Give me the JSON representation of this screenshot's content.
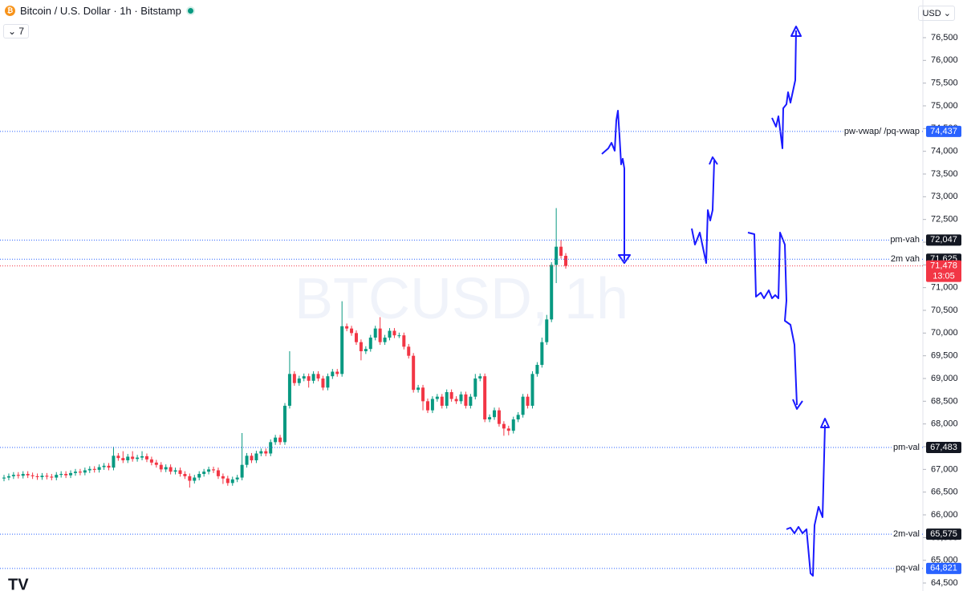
{
  "chart_data": {
    "type": "candlestick",
    "title": "Bitcoin / U.S. Dollar · 1h · Bitstamp",
    "indicators": 7,
    "currency": "USD",
    "watermark": "BTCUSD, 1h",
    "up_color": "#089981",
    "down_color": "#f23645",
    "open": [
      66800,
      66820,
      66850,
      66880,
      66860,
      66900,
      66870,
      66850,
      66830,
      66860,
      66840,
      66820,
      66880,
      66900,
      66870,
      66920,
      66950,
      66930,
      66980,
      67010,
      66990,
      67050,
      67080,
      67040,
      67300,
      67250,
      67200,
      67280,
      67230,
      67260,
      67290,
      67220,
      67150,
      67100,
      67000,
      67050,
      66950,
      66980,
      66900,
      66850,
      66750,
      66820,
      66900,
      66950,
      67000,
      66980,
      66850,
      66800,
      66700,
      66780,
      66820,
      67100,
      67300,
      67200,
      67350,
      67400,
      67350,
      67600,
      67700,
      67600,
      68400,
      69100,
      68900,
      69000,
      69050,
      68950,
      69100,
      69000,
      68800,
      69050,
      69150,
      69100,
      70150,
      70100,
      70000,
      69800,
      69600,
      69650,
      69900,
      70100,
      69800,
      69900,
      70050,
      69950,
      69950,
      69700,
      69500,
      68750,
      68800,
      68500,
      68300,
      68550,
      68600,
      68400,
      68700,
      68550,
      68500,
      68650,
      68400,
      68600,
      69000,
      69050,
      68100,
      68150,
      68300,
      68000,
      67900,
      67850,
      68100,
      68200,
      68600,
      68400,
      69100,
      69300,
      69800,
      70300,
      71500,
      71900,
      71700
    ],
    "high": [
      66880,
      66910,
      66940,
      66940,
      66960,
      66960,
      66930,
      66910,
      66920,
      66920,
      66900,
      66940,
      66960,
      66960,
      66980,
      67010,
      67010,
      67040,
      67070,
      67070,
      67110,
      67140,
      67140,
      67500,
      67360,
      67400,
      67340,
      67400,
      67320,
      67400,
      67350,
      67280,
      67210,
      67160,
      67110,
      67110,
      67040,
      67040,
      66960,
      66910,
      66880,
      66960,
      67010,
      67060,
      67060,
      67040,
      66910,
      66860,
      66840,
      66880,
      67800,
      67360,
      67360,
      67410,
      67460,
      67460,
      67660,
      67760,
      67760,
      68460,
      69600,
      69160,
      69060,
      69110,
      69110,
      69160,
      69160,
      69060,
      69110,
      69210,
      69210,
      70700,
      70210,
      70160,
      70060,
      69860,
      69710,
      69960,
      70160,
      70350,
      69960,
      70110,
      70110,
      70010,
      70010,
      69760,
      69560,
      68860,
      68860,
      68560,
      68610,
      68660,
      68660,
      68760,
      68760,
      68610,
      68710,
      68710,
      68660,
      69100,
      69110,
      69110,
      68210,
      68360,
      68360,
      68060,
      67960,
      68160,
      68260,
      68660,
      68660,
      69160,
      69360,
      69900,
      70400,
      71560,
      72750,
      72050,
      71760
    ],
    "low": [
      66740,
      66760,
      66790,
      66800,
      66800,
      66810,
      66790,
      66770,
      66770,
      66780,
      66760,
      66760,
      66820,
      66810,
      66810,
      66860,
      66870,
      66870,
      66920,
      66930,
      66930,
      66990,
      66980,
      66980,
      67190,
      67140,
      67140,
      67170,
      67170,
      67200,
      67160,
      67090,
      67040,
      66940,
      66940,
      66890,
      66890,
      66840,
      66790,
      66600,
      66690,
      66760,
      66840,
      66890,
      66920,
      66790,
      66680,
      66640,
      66640,
      66720,
      66760,
      67040,
      67140,
      67140,
      67290,
      67290,
      67290,
      67540,
      67540,
      67540,
      68340,
      68840,
      68840,
      68940,
      68800,
      68890,
      68940,
      68740,
      68740,
      68990,
      69040,
      69040,
      70040,
      69940,
      69740,
      69400,
      69540,
      69590,
      69840,
      69740,
      69740,
      69840,
      69890,
      69890,
      69640,
      69440,
      68690,
      68690,
      68300,
      68240,
      68240,
      68490,
      68340,
      68340,
      68490,
      68440,
      68440,
      68340,
      68340,
      68540,
      68940,
      68040,
      68040,
      68090,
      67940,
      67740,
      67750,
      67790,
      68040,
      68140,
      68340,
      68340,
      69040,
      69240,
      69740,
      70240,
      71100,
      71640,
      71418
    ],
    "close": [
      66820,
      66850,
      66880,
      66860,
      66900,
      66870,
      66850,
      66830,
      66860,
      66840,
      66820,
      66880,
      66900,
      66870,
      66920,
      66950,
      66930,
      66980,
      67010,
      66990,
      67050,
      67080,
      67040,
      67300,
      67250,
      67200,
      67280,
      67230,
      67260,
      67290,
      67220,
      67150,
      67100,
      67000,
      67050,
      66950,
      66980,
      66900,
      66850,
      66750,
      66820,
      66900,
      66950,
      67000,
      66980,
      66850,
      66800,
      66700,
      66780,
      66820,
      67100,
      67300,
      67200,
      67350,
      67400,
      67350,
      67600,
      67700,
      67600,
      68400,
      69100,
      68900,
      69000,
      69050,
      68950,
      69100,
      69000,
      68800,
      69050,
      69150,
      69100,
      70150,
      70100,
      70000,
      69800,
      69600,
      69650,
      69900,
      70100,
      69800,
      69900,
      70050,
      69950,
      69950,
      69700,
      69500,
      68750,
      68800,
      68500,
      68300,
      68550,
      68600,
      68400,
      68700,
      68550,
      68500,
      68650,
      68400,
      68600,
      69000,
      69050,
      68100,
      68150,
      68300,
      68000,
      67900,
      67850,
      68100,
      68200,
      68600,
      68400,
      69100,
      69300,
      69800,
      70300,
      71500,
      71900,
      71700,
      71478
    ],
    "ylim": [
      64324,
      77329
    ],
    "yticks": [
      {
        "value": 64500,
        "label": "64,500"
      },
      {
        "value": 65000,
        "label": "65,000"
      },
      {
        "value": 65500,
        "label": "65,500"
      },
      {
        "value": 66000,
        "label": "66,000"
      },
      {
        "value": 66500,
        "label": "66,500"
      },
      {
        "value": 67000,
        "label": "67,000"
      },
      {
        "value": 67500,
        "label": "67,500"
      },
      {
        "value": 68000,
        "label": "68,000"
      },
      {
        "value": 68500,
        "label": "68,500"
      },
      {
        "value": 69000,
        "label": "69,000"
      },
      {
        "value": 69500,
        "label": "69,500"
      },
      {
        "value": 70000,
        "label": "70,000"
      },
      {
        "value": 70500,
        "label": "70,500"
      },
      {
        "value": 71000,
        "label": "71,000"
      },
      {
        "value": 71500,
        "label": "71,500"
      },
      {
        "value": 72000,
        "label": "72,000"
      },
      {
        "value": 72500,
        "label": "72,500"
      },
      {
        "value": 73000,
        "label": "73,000"
      },
      {
        "value": 73500,
        "label": "73,500"
      },
      {
        "value": 74000,
        "label": "74,000"
      },
      {
        "value": 74500,
        "label": "74,500"
      },
      {
        "value": 75000,
        "label": "75,000"
      },
      {
        "value": 75500,
        "label": "75,500"
      },
      {
        "value": 76000,
        "label": "76,000"
      },
      {
        "value": 76500,
        "label": "76,500"
      }
    ],
    "levels": [
      {
        "name": "pw-vwap/ /pq-vwap",
        "value": 74437,
        "value_label": "74,437",
        "color": "#2962ff"
      },
      {
        "name": "pm-vah",
        "value": 72047,
        "value_label": "72,047",
        "color": "#131722"
      },
      {
        "name": "2m vah",
        "value": 71625,
        "value_label": "71,625",
        "color": "#131722"
      },
      {
        "name": "pm-val",
        "value": 67483,
        "value_label": "67,483",
        "color": "#131722"
      },
      {
        "name": "2m-val",
        "value": 65575,
        "value_label": "65,575",
        "color": "#131722"
      },
      {
        "name": "pq-val",
        "value": 64821,
        "value_label": "64,821",
        "color": "#2962ff"
      }
    ],
    "last_price": {
      "value": 71478,
      "label": "71,478",
      "countdown": "13:05",
      "color": "#f23645"
    }
  }
}
